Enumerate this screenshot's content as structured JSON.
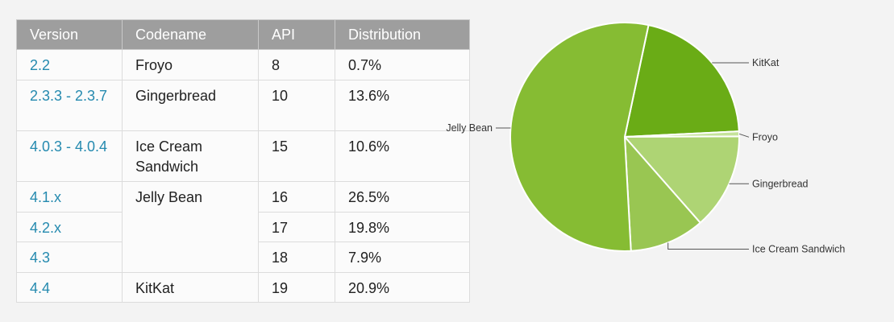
{
  "table": {
    "headers": [
      "Version",
      "Codename",
      "API",
      "Distribution"
    ],
    "rows": [
      {
        "version": "2.2",
        "codename": "Froyo",
        "api": "8",
        "distribution": "0.7%"
      },
      {
        "version": "2.3.3 - 2.3.7",
        "codename": "Gingerbread",
        "api": "10",
        "distribution": "13.6%"
      },
      {
        "version": "4.0.3 - 4.0.4",
        "codename": "Ice Cream Sandwich",
        "api": "15",
        "distribution": "10.6%"
      },
      {
        "version": "4.1.x",
        "codename": "Jelly Bean",
        "api": "16",
        "distribution": "26.5%"
      },
      {
        "version": "4.2.x",
        "api": "17",
        "distribution": "19.8%"
      },
      {
        "version": "4.3",
        "api": "18",
        "distribution": "7.9%"
      },
      {
        "version": "4.4",
        "codename": "KitKat",
        "api": "19",
        "distribution": "20.9%"
      }
    ]
  },
  "chart_data": {
    "type": "pie",
    "slices": [
      {
        "label": "KitKat",
        "value": 20.9,
        "color": "#6aac16"
      },
      {
        "label": "Froyo",
        "value": 0.7,
        "color": "#c5e39a"
      },
      {
        "label": "Gingerbread",
        "value": 13.6,
        "color": "#aed474"
      },
      {
        "label": "Ice Cream Sandwich",
        "value": 10.6,
        "color": "#99c652"
      },
      {
        "label": "Jelly Bean",
        "value": 54.2,
        "color": "#86bc33"
      }
    ]
  }
}
